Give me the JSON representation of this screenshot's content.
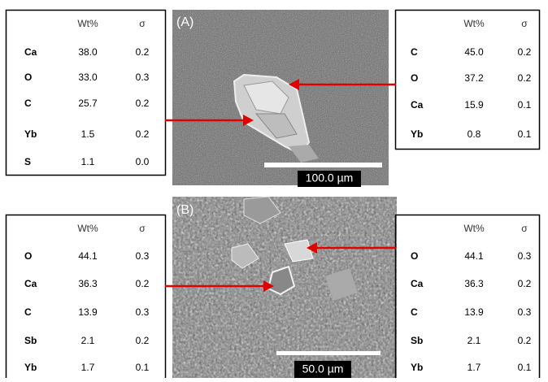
{
  "panels": [
    {
      "label": "(A)",
      "scale_bar": "100.0 µm",
      "left_table": {
        "header": [
          "Wt%",
          "σ"
        ],
        "rows": [
          [
            "Ca",
            "38.0",
            "0.2"
          ],
          [
            "O",
            "33.0",
            "0.3"
          ],
          [
            "C",
            "25.7",
            "0.2"
          ],
          [
            "Yb",
            "1.5",
            "0.2"
          ],
          [
            "S",
            "1.1",
            "0.0"
          ]
        ]
      },
      "right_table": {
        "header": [
          "Wt%",
          "σ"
        ],
        "rows": [
          [
            "C",
            "45.0",
            "0.2"
          ],
          [
            "O",
            "37.2",
            "0.2"
          ],
          [
            "Ca",
            "15.9",
            "0.1"
          ],
          [
            "Yb",
            "0.8",
            "0.1"
          ]
        ]
      }
    },
    {
      "label": "(B)",
      "scale_bar": "50.0 µm",
      "left_table": {
        "header": [
          "Wt%",
          "σ"
        ],
        "rows": [
          [
            "O",
            "44.1",
            "0.3"
          ],
          [
            "Ca",
            "36.3",
            "0.2"
          ],
          [
            "C",
            "13.9",
            "0.3"
          ],
          [
            "Sb",
            "2.1",
            "0.2"
          ],
          [
            "Yb",
            "1.7",
            "0.1"
          ]
        ]
      },
      "right_table": {
        "header": [
          "Wt%",
          "σ"
        ],
        "rows": [
          [
            "O",
            "44.1",
            "0.3"
          ],
          [
            "Ca",
            "36.3",
            "0.2"
          ],
          [
            "C",
            "13.9",
            "0.3"
          ],
          [
            "Sb",
            "2.1",
            "0.2"
          ],
          [
            "Yb",
            "1.7",
            "0.1"
          ]
        ]
      }
    }
  ]
}
